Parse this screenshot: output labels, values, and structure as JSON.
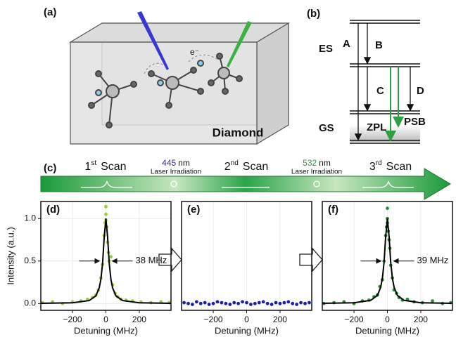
{
  "panel_labels": [
    "(a)",
    "(b)",
    "(c)",
    "(d)",
    "(e)",
    "(f)"
  ],
  "diagram_a": {
    "electron": "e⁻",
    "material": "Diamond"
  },
  "diagram_b": {
    "excited_state": "ES",
    "ground_state": "GS",
    "transitions": [
      "A",
      "B",
      "C",
      "D"
    ],
    "zpl": "ZPL",
    "psb": "PSB"
  },
  "scan_bar": {
    "scans": [
      {
        "number": "1",
        "suffix": "st",
        "word": "Scan"
      },
      {
        "number": "2",
        "suffix": "nd",
        "word": "Scan"
      },
      {
        "number": "3",
        "suffix": "rd",
        "word": "Scan"
      }
    ],
    "lasers": [
      {
        "wavelength": "445",
        "unit": "nm",
        "label": "Laser Irradiation",
        "color": "#2a2ab8"
      },
      {
        "wavelength": "532",
        "unit": "nm",
        "label": "Laser Irradiation",
        "color": "#2ea043"
      }
    ]
  },
  "chart_data": [
    {
      "type": "scatter",
      "xlabel": "Detuning (MHz)",
      "ylabel": "Intensity (a.u.)",
      "annotation": "38 MHz",
      "xlim": [
        -390,
        390
      ],
      "ylim": [
        -0.08,
        1.2
      ],
      "xticks": [
        {
          "value": -200,
          "label": "−200"
        },
        0,
        200
      ],
      "yticks": [
        {
          "value": 0,
          "label": "0.0"
        },
        {
          "value": 0.5,
          "label": "0.5"
        },
        {
          "value": 1,
          "label": "1.0"
        }
      ],
      "grid": true,
      "series": [
        {
          "type": "scatter",
          "color": "#9ccc3c",
          "x": [
            -380,
            -320,
            -260,
            -200,
            -150,
            -110,
            -80,
            -60,
            -45,
            -30,
            -20,
            -10,
            -5,
            0,
            0,
            0,
            5,
            10,
            15,
            20,
            30,
            40,
            55,
            70,
            90,
            120,
            160,
            210,
            270,
            330,
            380
          ],
          "values": [
            0.01,
            0.02,
            0.0,
            0.02,
            0.03,
            0.05,
            0.07,
            0.1,
            0.16,
            0.3,
            0.46,
            0.8,
            0.95,
            1.14,
            1.05,
            0.98,
            0.9,
            0.72,
            0.6,
            0.5,
            0.55,
            0.22,
            0.12,
            0.08,
            0.05,
            0.04,
            0.03,
            0.02,
            0.01,
            0.02,
            0.01
          ]
        },
        {
          "type": "line",
          "color": "#000000",
          "x": [
            -390,
            -200,
            -100,
            -60,
            -40,
            -30,
            -20,
            -10,
            0,
            10,
            20,
            30,
            40,
            60,
            100,
            200,
            390
          ],
          "values": [
            0.0024,
            0.009,
            0.035,
            0.091,
            0.184,
            0.286,
            0.474,
            0.783,
            1,
            0.783,
            0.474,
            0.286,
            0.184,
            0.091,
            0.035,
            0.009,
            0.0024
          ]
        }
      ]
    },
    {
      "type": "scatter",
      "xlabel": "Detuning (MHz)",
      "xlim": [
        -390,
        390
      ],
      "ylim": [
        -0.08,
        1.2
      ],
      "xticks": [
        {
          "value": -200,
          "label": "−200"
        },
        0,
        200
      ],
      "grid": true,
      "series": [
        {
          "type": "scatter",
          "color": "#1c1cb0",
          "x": [
            -375,
            -350,
            -325,
            -300,
            -275,
            -250,
            -225,
            -200,
            -175,
            -150,
            -125,
            -100,
            -75,
            -50,
            -25,
            0,
            25,
            50,
            75,
            100,
            125,
            150,
            175,
            200,
            225,
            250,
            275,
            300,
            325,
            350,
            375
          ],
          "values": [
            0.01,
            0.0,
            -0.01,
            0.02,
            0.0,
            0.01,
            -0.01,
            0.0,
            0.02,
            0.01,
            0.0,
            -0.01,
            0.01,
            0.0,
            0.02,
            0.01,
            -0.01,
            0.0,
            0.01,
            0.02,
            0.0,
            -0.01,
            0.01,
            0.0,
            0.01,
            0.02,
            0.0,
            -0.01,
            0.01,
            0.0,
            0.01
          ]
        }
      ]
    },
    {
      "type": "scatter",
      "xlabel": "Detuning (MHz)",
      "annotation": "39 MHz",
      "xlim": [
        -390,
        390
      ],
      "ylim": [
        -0.08,
        1.2
      ],
      "xticks": [
        {
          "value": -200,
          "label": "−200"
        },
        0,
        200
      ],
      "grid": true,
      "series": [
        {
          "type": "scatter",
          "color": "#2e8b3a",
          "x": [
            -380,
            -320,
            -260,
            -200,
            -150,
            -110,
            -80,
            -60,
            -45,
            -30,
            -20,
            -10,
            -5,
            0,
            0,
            0,
            5,
            10,
            15,
            20,
            30,
            40,
            55,
            70,
            90,
            120,
            160,
            210,
            270,
            330,
            380
          ],
          "values": [
            0.0,
            0.01,
            0.02,
            0.0,
            0.03,
            0.04,
            0.08,
            0.1,
            0.2,
            0.28,
            0.5,
            0.8,
            0.9,
            1.12,
            1.0,
            0.95,
            0.85,
            0.75,
            0.65,
            0.45,
            0.3,
            0.16,
            0.12,
            0.07,
            0.04,
            0.05,
            0.02,
            0.01,
            0.03,
            0.0,
            0.01
          ]
        },
        {
          "type": "line",
          "color": "#000000",
          "x": [
            -390,
            -200,
            -100,
            -60,
            -40,
            -30,
            -20,
            -10,
            0,
            10,
            20,
            30,
            40,
            60,
            100,
            200,
            390
          ],
          "values": [
            0.0025,
            0.0094,
            0.037,
            0.096,
            0.192,
            0.297,
            0.487,
            0.79,
            1,
            0.79,
            0.487,
            0.297,
            0.192,
            0.096,
            0.037,
            0.0094,
            0.0025
          ]
        }
      ]
    }
  ]
}
